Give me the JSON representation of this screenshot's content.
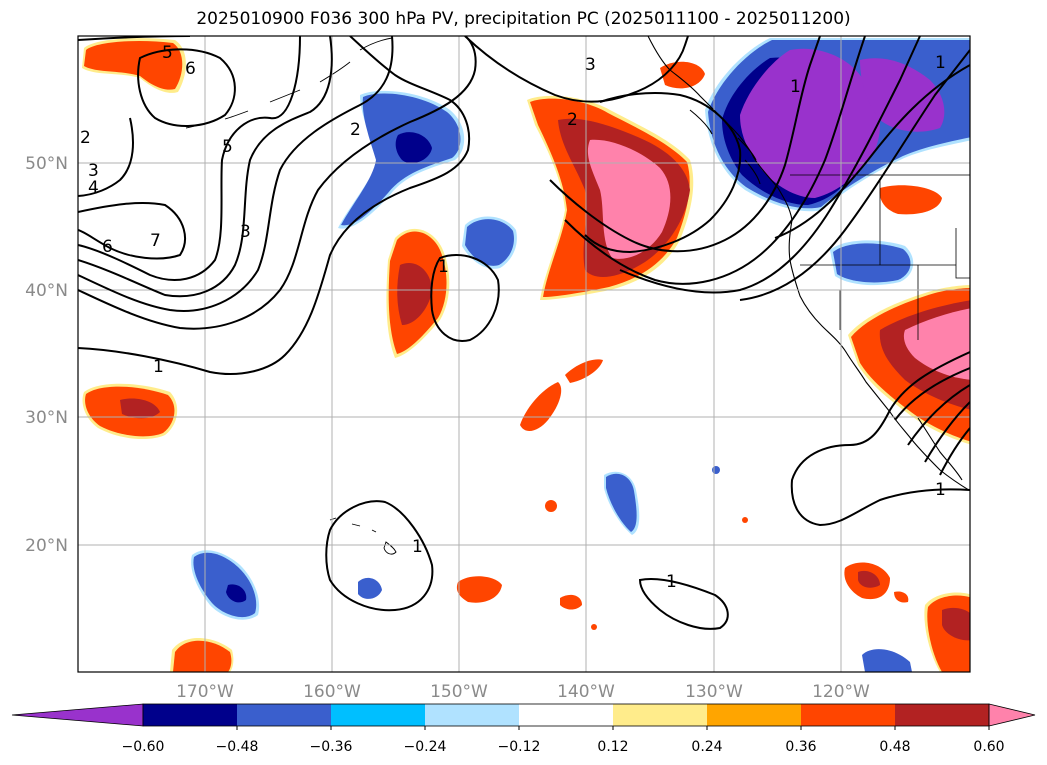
{
  "title": "2025010900 F036 300 hPa PV, precipitation PC (2025011100 - 2025011200)",
  "map": {
    "lat_labels": [
      "50°N",
      "40°N",
      "30°N",
      "20°N"
    ],
    "lon_labels": [
      "170°W",
      "160°W",
      "150°W",
      "140°W",
      "130°W",
      "120°W"
    ]
  },
  "contour_labels": [
    "5",
    "6",
    "3",
    "2",
    "4",
    "5",
    "6",
    "7",
    "3",
    "2",
    "2",
    "3",
    "1",
    "1",
    "1",
    "1",
    "1",
    "1",
    "1"
  ],
  "colorbar": {
    "ticks": [
      "−0.60",
      "−0.48",
      "−0.36",
      "−0.24",
      "−0.12",
      "0.12",
      "0.24",
      "0.36",
      "0.48",
      "0.60"
    ],
    "colors": [
      "#9932cc",
      "#00008b",
      "#3a5fcd",
      "#00bfff",
      "#b0e2ff",
      "#ffffff",
      "#ffec8b",
      "#ffa500",
      "#ff4500",
      "#b22222",
      "#ff82ab"
    ]
  }
}
